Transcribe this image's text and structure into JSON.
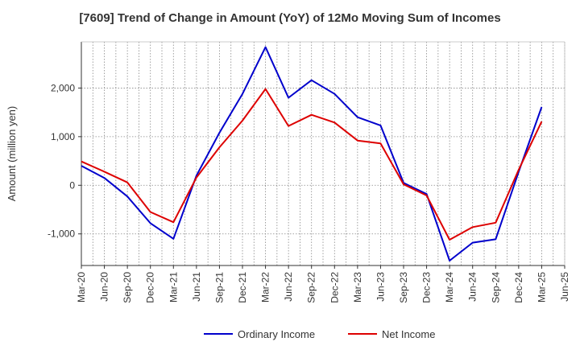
{
  "chart_data": {
    "type": "line",
    "title": "[7609]  Trend of Change in Amount (YoY) of 12Mo Moving Sum of Incomes",
    "xlabel": "",
    "ylabel": "Amount (million yen)",
    "ylim": [
      -1650,
      2950
    ],
    "yticks": [
      -1000,
      0,
      1000,
      2000
    ],
    "ytick_labels": [
      "-1,000",
      "0",
      "1,000",
      "2,000"
    ],
    "grid": true,
    "legend_position": "bottom",
    "categories": [
      "Mar-20",
      "Jun-20",
      "Sep-20",
      "Dec-20",
      "Mar-21",
      "Jun-21",
      "Sep-21",
      "Dec-21",
      "Mar-22",
      "Jun-22",
      "Sep-22",
      "Dec-22",
      "Mar-23",
      "Jun-23",
      "Sep-23",
      "Dec-23",
      "Mar-24",
      "Jun-24",
      "Sep-24",
      "Dec-24",
      "Mar-25",
      "Jun-25"
    ],
    "series": [
      {
        "name": "Ordinary Income",
        "color": "#0000cc",
        "values": [
          400,
          150,
          -230,
          -780,
          -1100,
          200,
          1080,
          1880,
          2840,
          1800,
          2160,
          1880,
          1400,
          1230,
          50,
          -180,
          -1550,
          -1180,
          -1110,
          280,
          1610,
          null
        ]
      },
      {
        "name": "Net Income",
        "color": "#dd0000",
        "values": [
          490,
          280,
          60,
          -550,
          -760,
          160,
          780,
          1330,
          1980,
          1220,
          1450,
          1290,
          920,
          860,
          20,
          -210,
          -1120,
          -860,
          -770,
          320,
          1310,
          null
        ]
      }
    ]
  }
}
